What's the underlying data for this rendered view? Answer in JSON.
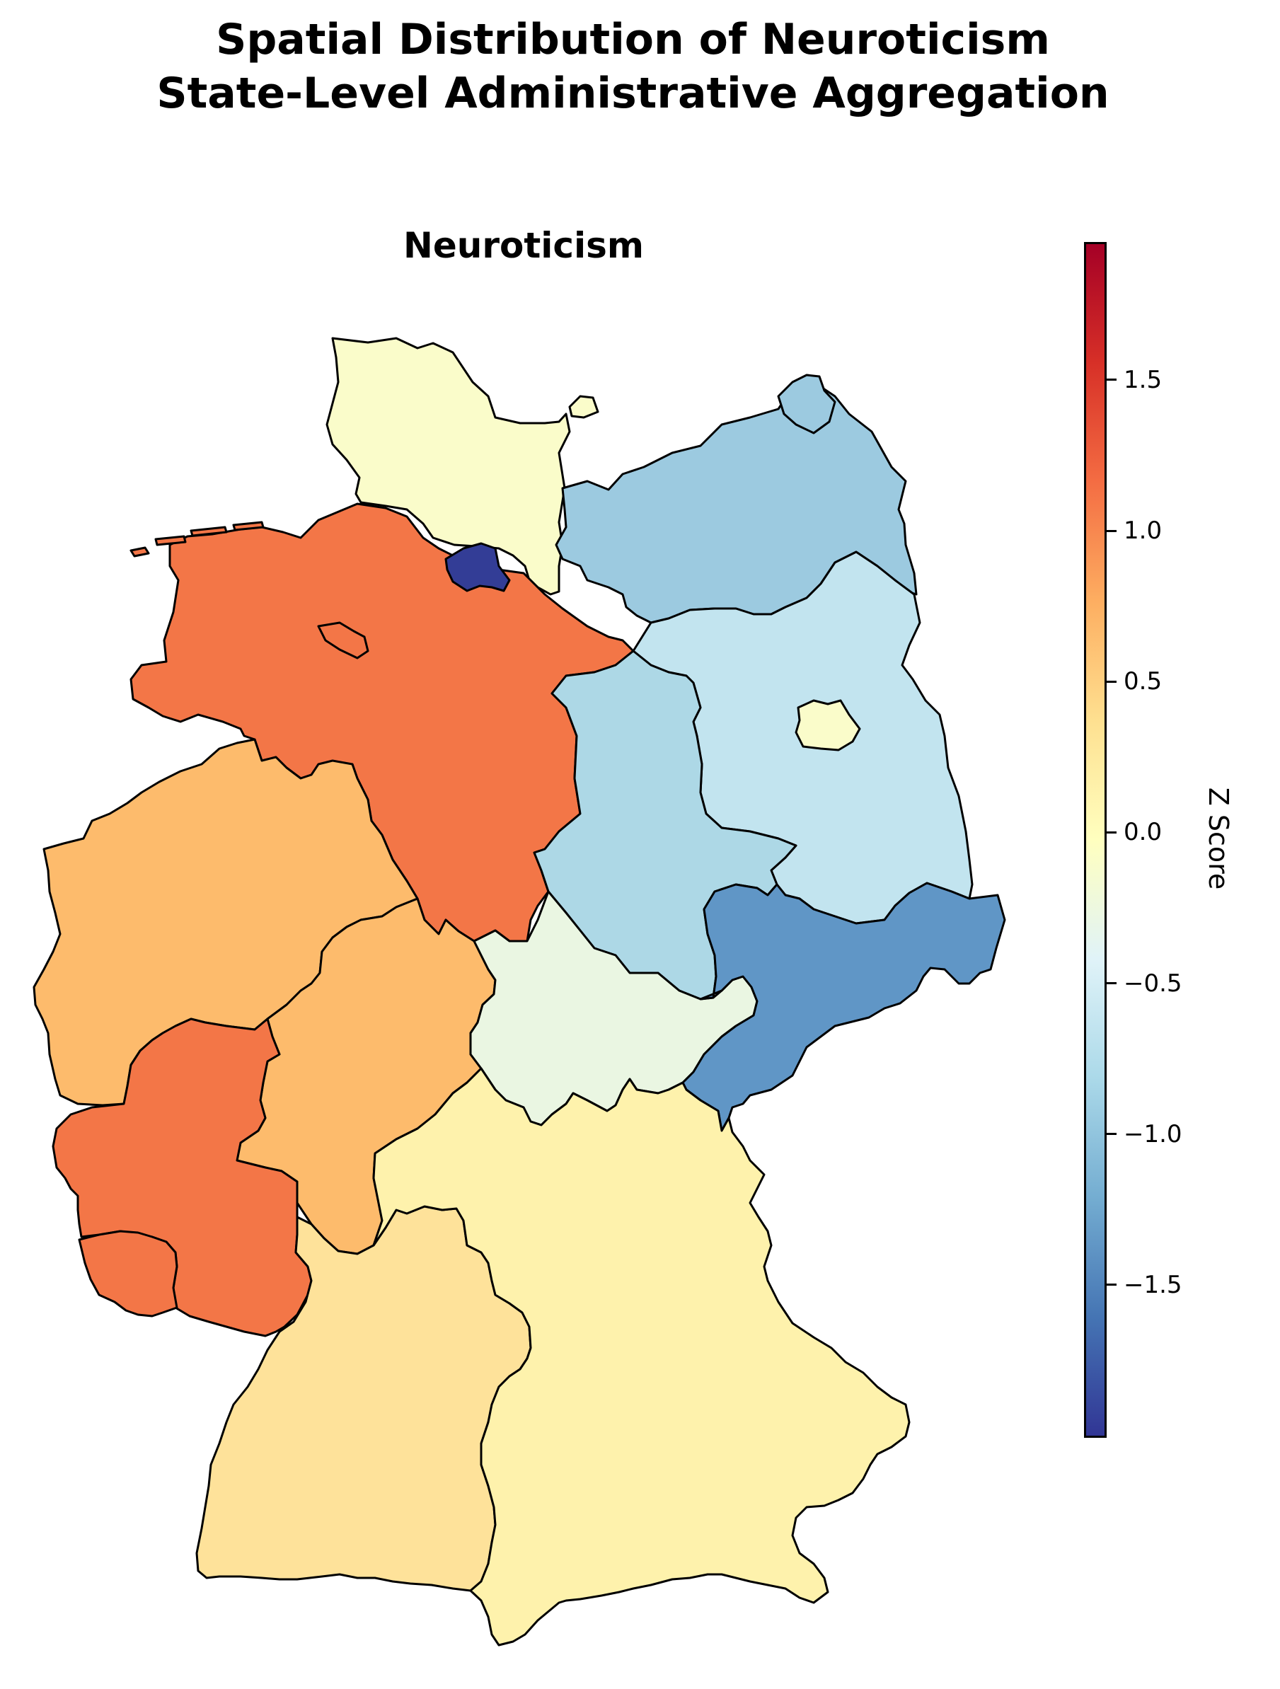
{
  "title_line1": "Spatial Distribution of Neuroticism",
  "title_line2": "State-Level Administrative Aggregation",
  "map_title": "Neuroticism",
  "colorbar": {
    "label": "Z Score",
    "colormap": "RdYlBu_r",
    "min": -2.0,
    "max": 1.95,
    "ticks": [
      "1.5",
      "1.0",
      "0.5",
      "0.0",
      "−0.5",
      "−1.0",
      "−1.5"
    ],
    "tick_values": [
      1.5,
      1.0,
      0.5,
      0.0,
      -0.5,
      -1.0,
      -1.5
    ]
  },
  "states": [
    {
      "name": "Schleswig-Holstein",
      "value": 0.05,
      "color": "#fafcca"
    },
    {
      "name": "Hamburg",
      "value": -1.95,
      "color": "#333d96"
    },
    {
      "name": "Mecklenburg-Vorpommern",
      "value": -0.95,
      "color": "#9ccae0"
    },
    {
      "name": "Lower Saxony",
      "value": 1.25,
      "color": "#f37647"
    },
    {
      "name": "Bremen",
      "value": 1.25,
      "color": "#f37647"
    },
    {
      "name": "Brandenburg",
      "value": -0.6,
      "color": "#c2e4ef"
    },
    {
      "name": "Berlin",
      "value": 0.05,
      "color": "#fafcca"
    },
    {
      "name": "Saxony-Anhalt",
      "value": -0.8,
      "color": "#add8e6"
    },
    {
      "name": "North Rhine-Westphalia",
      "value": 0.75,
      "color": "#fdbb6c"
    },
    {
      "name": "Hesse",
      "value": 0.75,
      "color": "#fdbb6c"
    },
    {
      "name": "Thuringia",
      "value": -0.3,
      "color": "#eaf6e2"
    },
    {
      "name": "Saxony",
      "value": -1.4,
      "color": "#6096c6"
    },
    {
      "name": "Rhineland-Palatinate",
      "value": 1.25,
      "color": "#f37647"
    },
    {
      "name": "Saarland",
      "value": 1.25,
      "color": "#f37647"
    },
    {
      "name": "Baden-Württemberg",
      "value": 0.5,
      "color": "#fee29a"
    },
    {
      "name": "Bavaria",
      "value": 0.3,
      "color": "#fef2ac"
    }
  ]
}
